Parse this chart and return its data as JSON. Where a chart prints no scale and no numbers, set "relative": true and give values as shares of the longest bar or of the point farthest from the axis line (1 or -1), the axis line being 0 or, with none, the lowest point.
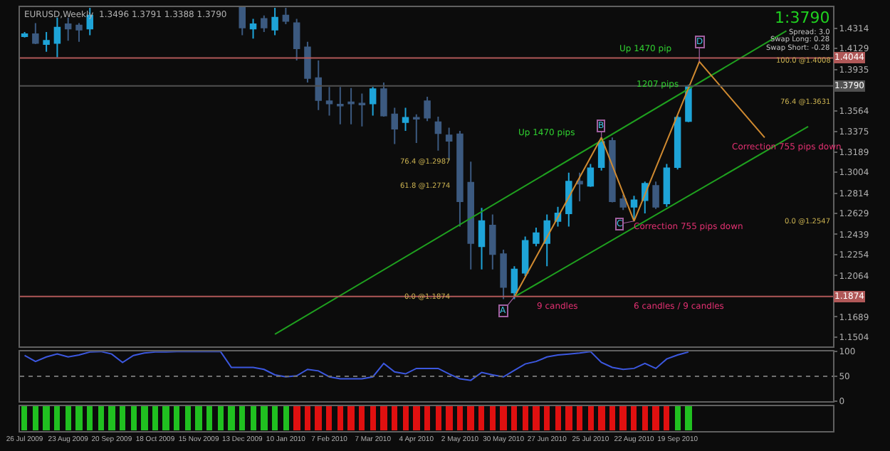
{
  "chart_data": [
    {
      "type": "candlestick",
      "title": "EURUSD,Weekly  1.3496 1.3791 1.3388 1.3790",
      "x": [
        "2009-07-26",
        "2009-08-02",
        "2009-08-09",
        "2009-08-16",
        "2009-08-23",
        "2009-08-30",
        "2009-09-06",
        "2009-12-13",
        "2009-12-20",
        "2009-12-27",
        "2010-01-03",
        "2010-01-10",
        "2010-01-17",
        "2010-01-24",
        "2010-01-31",
        "2010-02-07",
        "2010-02-14",
        "2010-02-21",
        "2010-02-28",
        "2010-03-07",
        "2010-03-14",
        "2010-03-21",
        "2010-03-28",
        "2010-04-04",
        "2010-04-11",
        "2010-04-18",
        "2010-04-25",
        "2010-05-02",
        "2010-05-09",
        "2010-05-16",
        "2010-05-23",
        "2010-05-30",
        "2010-06-06",
        "2010-06-13",
        "2010-06-20",
        "2010-06-27",
        "2010-07-04",
        "2010-07-11",
        "2010-07-18",
        "2010-07-25",
        "2010-08-01",
        "2010-08-08",
        "2010-08-15",
        "2010-08-22",
        "2010-08-29",
        "2010-09-05",
        "2010-09-12",
        "2010-09-19",
        "2010-09-26"
      ],
      "ohlc": [
        [
          1.424,
          1.428,
          1.423,
          1.426
        ],
        [
          1.426,
          1.436,
          1.417,
          1.418
        ],
        [
          1.417,
          1.428,
          1.41,
          1.42
        ],
        [
          1.418,
          1.441,
          1.405,
          1.432
        ],
        [
          1.435,
          1.441,
          1.42,
          1.431
        ],
        [
          1.434,
          1.436,
          1.419,
          1.43
        ],
        [
          1.431,
          1.45,
          1.425,
          1.443
        ],
        [
          1.45,
          1.45,
          1.425,
          1.432
        ],
        [
          1.431,
          1.44,
          1.422,
          1.435
        ],
        [
          1.44,
          1.443,
          1.428,
          1.432
        ],
        [
          1.43,
          1.45,
          1.425,
          1.441
        ],
        [
          1.443,
          1.45,
          1.435,
          1.438
        ],
        [
          1.436,
          1.44,
          1.402,
          1.413
        ],
        [
          1.414,
          1.419,
          1.382,
          1.386
        ],
        [
          1.386,
          1.402,
          1.357,
          1.366
        ],
        [
          1.365,
          1.378,
          1.352,
          1.363
        ],
        [
          1.362,
          1.378,
          1.344,
          1.361
        ],
        [
          1.364,
          1.377,
          1.344,
          1.363
        ],
        [
          1.363,
          1.372,
          1.342,
          1.362
        ],
        [
          1.363,
          1.378,
          1.352,
          1.376
        ],
        [
          1.376,
          1.382,
          1.351,
          1.352
        ],
        [
          1.353,
          1.359,
          1.326,
          1.34
        ],
        [
          1.346,
          1.359,
          1.338,
          1.35
        ],
        [
          1.35,
          1.353,
          1.327,
          1.349
        ],
        [
          1.365,
          1.369,
          1.347,
          1.35
        ],
        [
          1.346,
          1.351,
          1.32,
          1.336
        ],
        [
          1.334,
          1.341,
          1.311,
          1.329
        ],
        [
          1.335,
          1.338,
          1.251,
          1.274
        ],
        [
          1.291,
          1.31,
          1.212,
          1.236
        ],
        [
          1.233,
          1.268,
          1.212,
          1.256
        ],
        [
          1.252,
          1.262,
          1.212,
          1.226
        ],
        [
          1.226,
          1.23,
          1.185,
          1.196
        ],
        [
          1.191,
          1.215,
          1.185,
          1.212
        ],
        [
          1.209,
          1.242,
          1.206,
          1.238
        ],
        [
          1.236,
          1.25,
          1.233,
          1.245
        ],
        [
          1.236,
          1.262,
          1.215,
          1.256
        ],
        [
          1.256,
          1.269,
          1.251,
          1.263
        ],
        [
          1.263,
          1.3,
          1.251,
          1.292
        ],
        [
          1.292,
          1.3,
          1.274,
          1.29
        ],
        [
          1.288,
          1.308,
          1.287,
          1.304
        ],
        [
          1.305,
          1.332,
          1.302,
          1.328
        ],
        [
          1.329,
          1.332,
          1.273,
          1.274
        ],
        [
          1.276,
          1.28,
          1.266,
          1.269
        ],
        [
          1.269,
          1.279,
          1.256,
          1.275
        ],
        [
          1.275,
          1.292,
          1.263,
          1.29
        ],
        [
          1.288,
          1.292,
          1.267,
          1.269
        ],
        [
          1.272,
          1.308,
          1.269,
          1.304
        ],
        [
          1.305,
          1.352,
          1.303,
          1.35
        ],
        [
          1.347,
          1.38,
          1.346,
          1.378
        ]
      ],
      "colors": [
        "#1ea4d8",
        "#3c5a80",
        "#1ea4d8",
        "#1ea4d8",
        "#3c5a80",
        "#3c5a80",
        "#1ea4d8",
        "#3c5a80",
        "#1ea4d8",
        "#3c5a80",
        "#1ea4d8",
        "#3c5a80",
        "#3c5a80",
        "#3c5a80",
        "#3c5a80",
        "#3c5a80",
        "#3c5a80",
        "#3c5a80",
        "#3c5a80",
        "#1ea4d8",
        "#3c5a80",
        "#3c5a80",
        "#1ea4d8",
        "#3c5a80",
        "#3c5a80",
        "#3c5a80",
        "#3c5a80",
        "#3c5a80",
        "#3c5a80",
        "#1ea4d8",
        "#3c5a80",
        "#3c5a80",
        "#1ea4d8",
        "#1ea4d8",
        "#1ea4d8",
        "#1ea4d8",
        "#1ea4d8",
        "#1ea4d8",
        "#3c5a80",
        "#1ea4d8",
        "#1ea4d8",
        "#3c5a80",
        "#3c5a80",
        "#1ea4d8",
        "#1ea4d8",
        "#3c5a80",
        "#1ea4d8",
        "#1ea4d8",
        "#1ea4d8"
      ],
      "series": [
        {
          "type": "line",
          "color": "#1fa01f",
          "x": [
            "2010-01-03",
            "2010-11-28"
          ],
          "values": [
            1.153,
            1.429
          ]
        },
        {
          "type": "line",
          "color": "#1fa01f",
          "x": [
            "2010-06-06",
            "2010-12-12"
          ],
          "values": [
            1.187,
            1.342
          ]
        },
        {
          "type": "line",
          "color": "#d08a30",
          "x": [
            "2010-06-06",
            "2010-08-01",
            "2010-08-22",
            "2010-10-03",
            "2010-11-14"
          ],
          "values": [
            1.187,
            1.332,
            1.256,
            1.401,
            1.332
          ]
        }
      ],
      "xlim": [
        "2009-07-23",
        "2010-12-28"
      ],
      "ylim": [
        1.142,
        1.4506
      ],
      "yticks": [
        1.1504,
        1.1689,
        1.2064,
        1.2254,
        1.2439,
        1.2629,
        1.2814,
        1.3004,
        1.3189,
        1.3375,
        1.3564,
        1.3935,
        1.4129,
        1.4314
      ],
      "ref_lines": [
        {
          "axis": "y",
          "value": 1.4044,
          "label": "1.4044",
          "color": "#b05858"
        },
        {
          "axis": "y",
          "value": 1.1874,
          "label": "1.1874",
          "color": "#b05858"
        },
        {
          "axis": "y",
          "value": 1.379,
          "label": "1.3790",
          "color": "#505050"
        }
      ],
      "annotations": [
        {
          "text": "A",
          "x": "2010-06-06",
          "y": 1.187
        },
        {
          "text": "B",
          "x": "2010-08-01",
          "y": 1.332
        },
        {
          "text": "C",
          "x": "2010-08-22",
          "y": 1.256
        },
        {
          "text": "D",
          "x": "2010-10-03",
          "y": 1.401
        },
        "Up 1470 pips",
        "1207 pips",
        "Up 1470 pip",
        "Correction 755 pips down",
        "Correction 755 pips down",
        "9 candles",
        "6 candles / 9 candles",
        "100.0 @1.4008",
        "76.4 @1.3631",
        "0.0 @1.2547",
        "76.4 @1.2987",
        "61.8 @1.2774",
        "0.0 @1.1874",
        "1:3790",
        "Spread: 3.0",
        "Swap Long: 0.28",
        "Swap Short: -0.28"
      ],
      "tick_labels": "y"
    },
    {
      "type": "line",
      "x": [
        "2009-07-26",
        "2009-08-02",
        "2009-08-09",
        "2009-08-16",
        "2009-08-23",
        "2009-08-30",
        "2009-09-06",
        "2009-09-13",
        "2009-09-20",
        "2009-09-27",
        "2009-10-04",
        "2009-10-11",
        "2009-10-18",
        "2009-10-25",
        "2009-11-01",
        "2009-11-08",
        "2009-11-15",
        "2009-11-22",
        "2009-11-29",
        "2009-12-06",
        "2009-12-13",
        "2009-12-20",
        "2009-12-27",
        "2010-01-03",
        "2010-01-10",
        "2010-01-17",
        "2010-01-24",
        "2010-01-31",
        "2010-02-07",
        "2010-02-14",
        "2010-02-21",
        "2010-02-28",
        "2010-03-07",
        "2010-03-14",
        "2010-03-21",
        "2010-03-28",
        "2010-04-04",
        "2010-04-11",
        "2010-04-18",
        "2010-04-25",
        "2010-05-02",
        "2010-05-09",
        "2010-05-16",
        "2010-05-23",
        "2010-05-30",
        "2010-06-06",
        "2010-06-13",
        "2010-06-20",
        "2010-06-27",
        "2010-07-04",
        "2010-07-11",
        "2010-07-18",
        "2010-07-25",
        "2010-08-01",
        "2010-08-08",
        "2010-08-15",
        "2010-08-22",
        "2010-08-29",
        "2010-09-05",
        "2010-09-12",
        "2010-09-19",
        "2010-09-26"
      ],
      "series": [
        {
          "color": "#3c58e0",
          "values": [
            92,
            80,
            89,
            95,
            89,
            93,
            99,
            100,
            95,
            78,
            92,
            97,
            99,
            99,
            100,
            100,
            100,
            100,
            100,
            68,
            68,
            68,
            64,
            53,
            49,
            51,
            64,
            61,
            49,
            45,
            45,
            45,
            49,
            76,
            59,
            55,
            66,
            66,
            66,
            55,
            45,
            42,
            58,
            53,
            49,
            62,
            75,
            80,
            89,
            93,
            95,
            97,
            100,
            78,
            68,
            64,
            66,
            76,
            66,
            85,
            93,
            99
          ]
        }
      ],
      "xlim": [
        "2009-07-23",
        "2010-12-28"
      ],
      "ylim": [
        0,
        100
      ],
      "yticks": [
        0,
        50,
        100
      ],
      "ref_lines": [
        {
          "axis": "y",
          "value": 50,
          "color": "#707070",
          "line_style": "dotted"
        }
      ],
      "tick_labels": "y"
    },
    {
      "type": "bar",
      "relative": true,
      "x": [
        "2009-07-26",
        "2009-08-02",
        "2009-08-09",
        "2009-08-16",
        "2009-08-23",
        "2009-08-30",
        "2009-09-06",
        "2009-09-13",
        "2009-09-20",
        "2009-09-27",
        "2009-10-04",
        "2009-10-11",
        "2009-10-18",
        "2009-10-25",
        "2009-11-01",
        "2009-11-08",
        "2009-11-15",
        "2009-11-22",
        "2009-11-29",
        "2009-12-06",
        "2009-12-13",
        "2009-12-20",
        "2009-12-27",
        "2010-01-03",
        "2010-01-10",
        "2010-01-17",
        "2010-01-24",
        "2010-01-31",
        "2010-02-07",
        "2010-02-14",
        "2010-02-21",
        "2010-02-28",
        "2010-03-07",
        "2010-03-14",
        "2010-03-21",
        "2010-03-28",
        "2010-04-04",
        "2010-04-11",
        "2010-04-18",
        "2010-04-25",
        "2010-05-02",
        "2010-05-09",
        "2010-05-16",
        "2010-05-23",
        "2010-05-30",
        "2010-06-06",
        "2010-06-13",
        "2010-06-20",
        "2010-06-27",
        "2010-07-04",
        "2010-07-11",
        "2010-07-18",
        "2010-07-25",
        "2010-08-01",
        "2010-08-08",
        "2010-08-15",
        "2010-08-22",
        "2010-08-29",
        "2010-09-05",
        "2010-09-12",
        "2010-09-19",
        "2010-09-26"
      ],
      "values": [
        1,
        1,
        1,
        1,
        1,
        1,
        1,
        1,
        1,
        1,
        1,
        1,
        1,
        1,
        1,
        1,
        1,
        1,
        1,
        1,
        1,
        1,
        1,
        1,
        1,
        1,
        1,
        1,
        1,
        1,
        1,
        1,
        1,
        1,
        1,
        1,
        1,
        1,
        1,
        1,
        1,
        1,
        1,
        1,
        1,
        1,
        1,
        1,
        1,
        1,
        1,
        1,
        1,
        1,
        1,
        1,
        1,
        1,
        1,
        1,
        1,
        1
      ],
      "colors": [
        "#20c020",
        "#20c020",
        "#20c020",
        "#20c020",
        "#20c020",
        "#20c020",
        "#20c020",
        "#20c020",
        "#20c020",
        "#20c020",
        "#20c020",
        "#20c020",
        "#20c020",
        "#20c020",
        "#20c020",
        "#20c020",
        "#20c020",
        "#20c020",
        "#20c020",
        "#20c020",
        "#20c020",
        "#20c020",
        "#20c020",
        "#20c020",
        "#20c020",
        "#e01010",
        "#e01010",
        "#e01010",
        "#e01010",
        "#e01010",
        "#e01010",
        "#e01010",
        "#e01010",
        "#e01010",
        "#e01010",
        "#e01010",
        "#e01010",
        "#e01010",
        "#e01010",
        "#e01010",
        "#e01010",
        "#e01010",
        "#e01010",
        "#e01010",
        "#e01010",
        "#e01010",
        "#e01010",
        "#e01010",
        "#e01010",
        "#e01010",
        "#e01010",
        "#e01010",
        "#e01010",
        "#e01010",
        "#e01010",
        "#e01010",
        "#e01010",
        "#e01010",
        "#e01010",
        "#e01010",
        "#20c020",
        "#20c020"
      ],
      "xlim": [
        "2009-07-23",
        "2010-12-28"
      ],
      "xticks": [
        {
          "value": "2009-07-26",
          "label": "26 Jul 2009"
        },
        {
          "value": "2009-08-23",
          "label": "23 Aug 2009"
        },
        {
          "value": "2009-09-20",
          "label": "20 Sep 2009"
        },
        {
          "value": "2009-10-18",
          "label": "18 Oct 2009"
        },
        {
          "value": "2009-11-15",
          "label": "15 Nov 2009"
        },
        {
          "value": "2009-12-13",
          "label": "13 Dec 2009"
        },
        {
          "value": "2010-01-10",
          "label": "10 Jan 2010"
        },
        {
          "value": "2010-02-07",
          "label": "7 Feb 2010"
        },
        {
          "value": "2010-03-07",
          "label": "7 Mar 2010"
        },
        {
          "value": "2010-04-04",
          "label": "4 Apr 2010"
        },
        {
          "value": "2010-05-02",
          "label": "2 May 2010"
        },
        {
          "value": "2010-05-30",
          "label": "30 May 2010"
        },
        {
          "value": "2010-06-27",
          "label": "27 Jun 2010"
        },
        {
          "value": "2010-07-25",
          "label": "25 Jul 2010"
        },
        {
          "value": "2010-08-22",
          "label": "22 Aug 2010"
        },
        {
          "value": "2010-09-19",
          "label": "19 Sep 2010"
        }
      ],
      "tick_labels": "x"
    }
  ]
}
